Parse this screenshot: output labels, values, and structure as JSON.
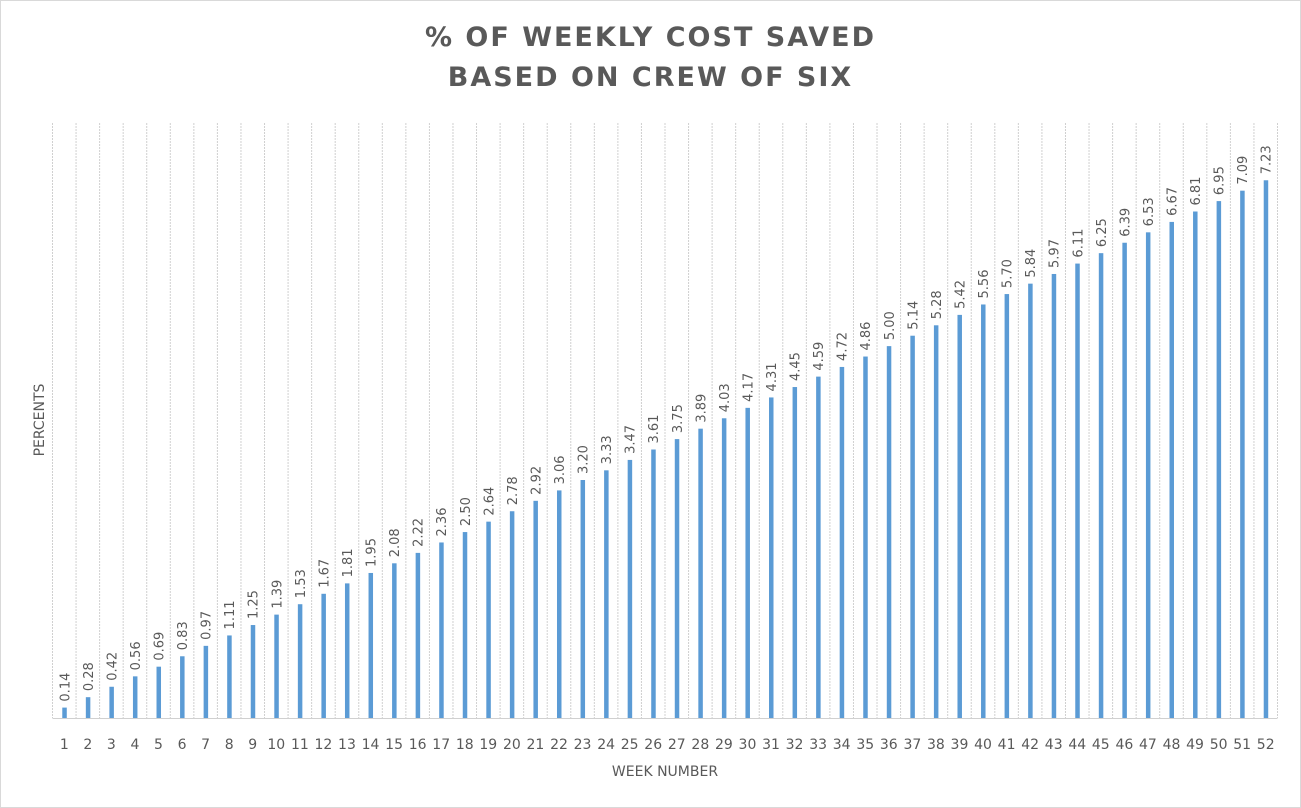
{
  "chart_data": {
    "type": "bar",
    "title": [
      "% OF WEEKLY COST SAVED",
      "BASED ON CREW OF SIX"
    ],
    "xlabel": "WEEK NUMBER",
    "ylabel": "PERCENTS",
    "ylim": [
      0,
      8
    ],
    "grid": "vertical",
    "legend": "none",
    "bar_color": "#5B9BD5",
    "categories": [
      "1",
      "2",
      "3",
      "4",
      "5",
      "6",
      "7",
      "8",
      "9",
      "10",
      "11",
      "12",
      "13",
      "14",
      "15",
      "16",
      "17",
      "18",
      "19",
      "20",
      "21",
      "22",
      "23",
      "24",
      "25",
      "26",
      "27",
      "28",
      "29",
      "30",
      "31",
      "32",
      "33",
      "34",
      "35",
      "36",
      "37",
      "38",
      "39",
      "40",
      "41",
      "42",
      "43",
      "44",
      "45",
      "46",
      "47",
      "48",
      "49",
      "50",
      "51",
      "52"
    ],
    "values": [
      0.14,
      0.28,
      0.42,
      0.56,
      0.69,
      0.83,
      0.97,
      1.11,
      1.25,
      1.39,
      1.53,
      1.67,
      1.81,
      1.95,
      2.08,
      2.22,
      2.36,
      2.5,
      2.64,
      2.78,
      2.92,
      3.06,
      3.2,
      3.33,
      3.47,
      3.61,
      3.75,
      3.89,
      4.03,
      4.17,
      4.31,
      4.45,
      4.59,
      4.72,
      4.86,
      5.0,
      5.14,
      5.28,
      5.42,
      5.56,
      5.7,
      5.84,
      5.97,
      6.11,
      6.25,
      6.39,
      6.53,
      6.67,
      6.81,
      6.95,
      7.09,
      7.23
    ]
  }
}
